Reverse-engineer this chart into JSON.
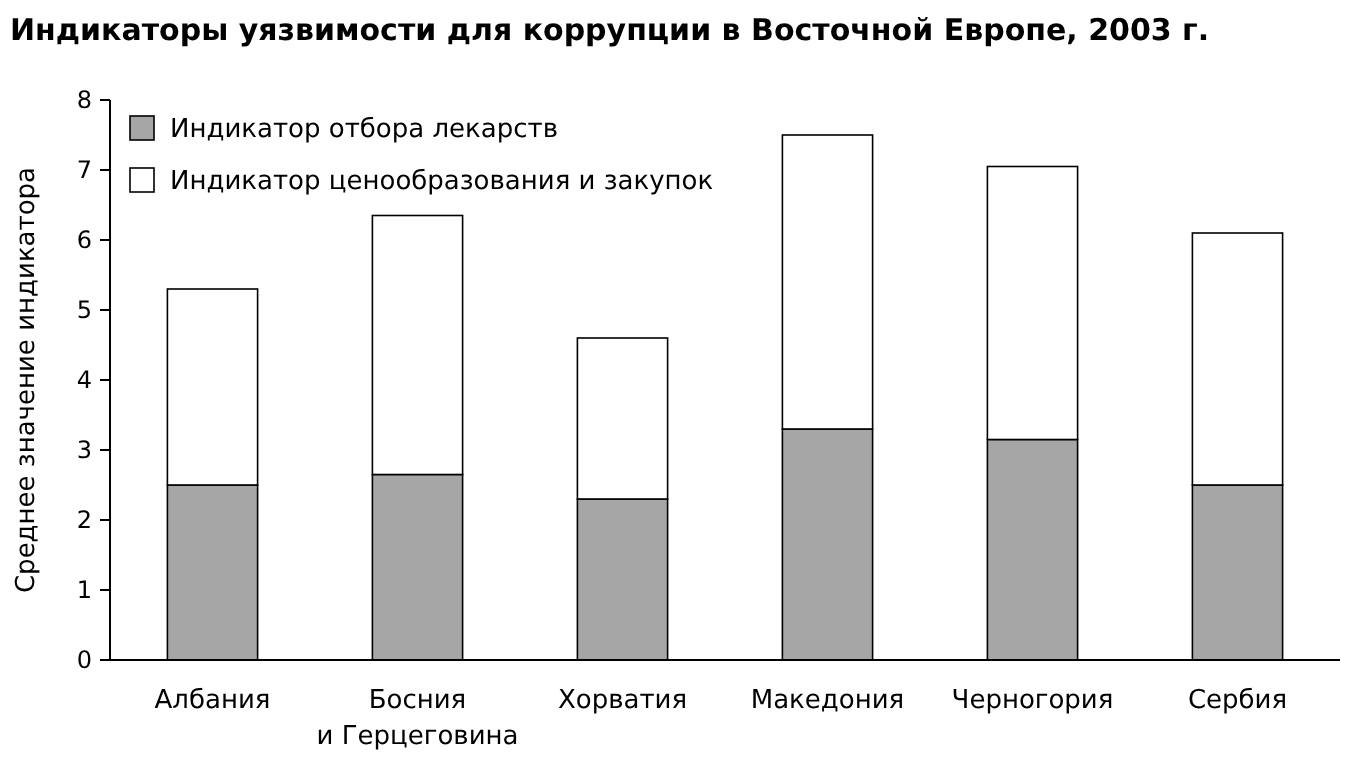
{
  "chart_data": {
    "type": "bar",
    "stacked": true,
    "title": "Индикаторы уязвимости для коррупции в Восточной Европе, 2003 г.",
    "ylabel": "Среднее значение индикатора",
    "categories": [
      "Албания",
      "Босния и Герцеговина",
      "Хорватия",
      "Македония",
      "Черногория",
      "Сербия"
    ],
    "series": [
      {
        "name": "Индикатор отбора лекарств",
        "color": "#a6a6a6",
        "values": [
          2.5,
          2.65,
          2.3,
          3.3,
          3.15,
          2.5
        ]
      },
      {
        "name": "Индикатор ценообразования и закупок",
        "color": "#ffffff",
        "values": [
          2.8,
          3.7,
          2.3,
          4.2,
          3.9,
          3.6
        ]
      }
    ],
    "ylim": [
      0,
      8
    ],
    "yticks": [
      0,
      1,
      2,
      3,
      4,
      5,
      6,
      7,
      8
    ],
    "grid": false,
    "legend": "top left"
  }
}
